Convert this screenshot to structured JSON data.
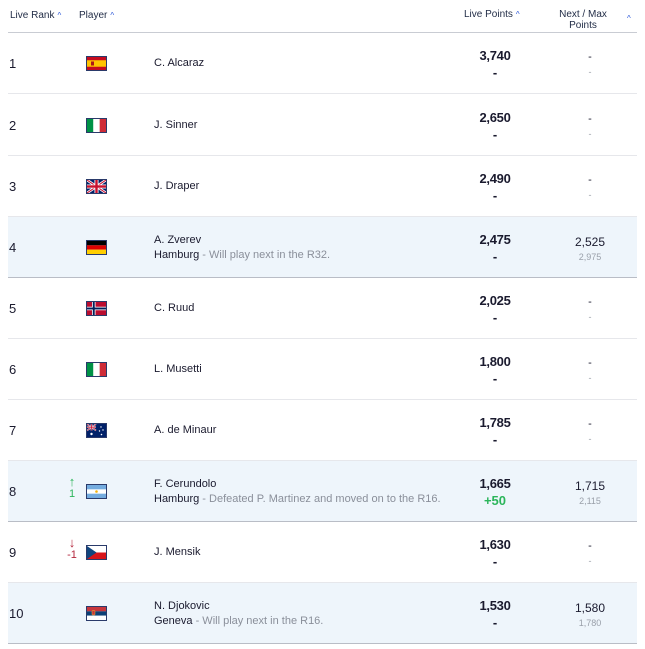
{
  "header": {
    "rank": "Live Rank",
    "player": "Player",
    "points": "Live Points",
    "next_max_line1": "Next / Max",
    "next_max_line2": "Points",
    "sort_caret": "^"
  },
  "rows": [
    {
      "rank": "1",
      "move": "",
      "move_dir": "",
      "flag": "spain-flag-icon",
      "name": "C. Alcaraz",
      "event": "",
      "desc": "",
      "points": "3,740",
      "delta": "-",
      "next": "-",
      "max": "-"
    },
    {
      "rank": "2",
      "move": "",
      "move_dir": "",
      "flag": "italy-flag-icon",
      "name": "J. Sinner",
      "event": "",
      "desc": "",
      "points": "2,650",
      "delta": "-",
      "next": "-",
      "max": "-"
    },
    {
      "rank": "3",
      "move": "",
      "move_dir": "",
      "flag": "uk-flag-icon",
      "name": "J. Draper",
      "event": "",
      "desc": "",
      "points": "2,490",
      "delta": "-",
      "next": "-",
      "max": "-"
    },
    {
      "rank": "4",
      "move": "",
      "move_dir": "",
      "flag": "germany-flag-icon",
      "name": "A. Zverev",
      "event": "Hamburg",
      "desc": " - Will play next in the R32.",
      "points": "2,475",
      "delta": "-",
      "next": "2,525",
      "max": "2,975"
    },
    {
      "rank": "5",
      "move": "",
      "move_dir": "",
      "flag": "norway-flag-icon",
      "name": "C. Ruud",
      "event": "",
      "desc": "",
      "points": "2,025",
      "delta": "-",
      "next": "-",
      "max": "-"
    },
    {
      "rank": "6",
      "move": "",
      "move_dir": "",
      "flag": "italy-flag-icon",
      "name": "L. Musetti",
      "event": "",
      "desc": "",
      "points": "1,800",
      "delta": "-",
      "next": "-",
      "max": "-"
    },
    {
      "rank": "7",
      "move": "",
      "move_dir": "",
      "flag": "australia-flag-icon",
      "name": "A. de Minaur",
      "event": "",
      "desc": "",
      "points": "1,785",
      "delta": "-",
      "next": "-",
      "max": "-"
    },
    {
      "rank": "8",
      "move": "1",
      "move_dir": "up",
      "flag": "argentina-flag-icon",
      "name": "F. Cerundolo",
      "event": "Hamburg",
      "desc": " - Defeated P. Martinez and moved on to the R16.",
      "points": "1,665",
      "delta": "+50",
      "next": "1,715",
      "max": "2,115"
    },
    {
      "rank": "9",
      "move": "-1",
      "move_dir": "down",
      "flag": "czech-flag-icon",
      "name": "J. Mensik",
      "event": "",
      "desc": "",
      "points": "1,630",
      "delta": "-",
      "next": "-",
      "max": "-"
    },
    {
      "rank": "10",
      "move": "",
      "move_dir": "",
      "flag": "serbia-flag-icon",
      "name": "N. Djokovic",
      "event": "Geneva",
      "desc": " - Will play next in the R16.",
      "points": "1,530",
      "delta": "-",
      "next": "1,580",
      "max": "1,780"
    }
  ],
  "colors": {
    "highlight_row": "#eef5fb",
    "up": "#2bb55a",
    "down": "#b3263c",
    "sort_caret": "#2e59d9"
  }
}
